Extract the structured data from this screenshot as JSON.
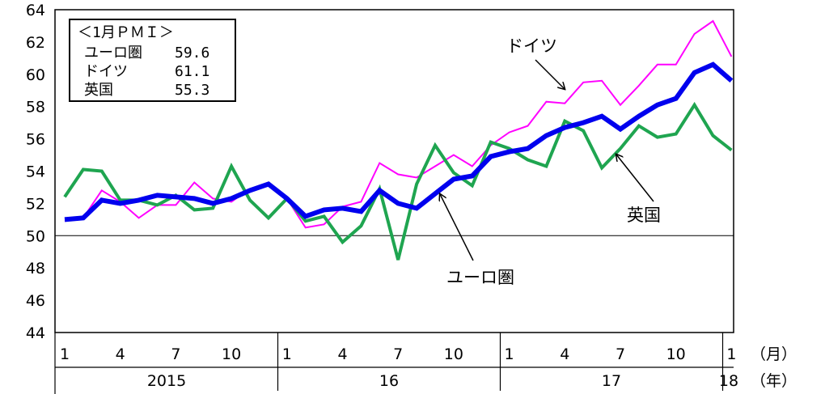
{
  "chart_data": {
    "type": "line",
    "title": "",
    "xlabel": "",
    "ylabel": "",
    "ylim": [
      44,
      64
    ],
    "y_ticks": [
      44,
      46,
      48,
      50,
      52,
      54,
      56,
      58,
      60,
      62,
      64
    ],
    "reference_line": 50,
    "grid": false,
    "x_month_ticks": [
      "1",
      "4",
      "7",
      "10",
      "1",
      "4",
      "7",
      "10",
      "1",
      "4",
      "7",
      "10",
      "1"
    ],
    "x_years": [
      "2015",
      "16",
      "17",
      "18"
    ],
    "month_unit": "（月）",
    "year_unit": "（年）",
    "x": [
      "2015-01",
      "2015-02",
      "2015-03",
      "2015-04",
      "2015-05",
      "2015-06",
      "2015-07",
      "2015-08",
      "2015-09",
      "2015-10",
      "2015-11",
      "2015-12",
      "2016-01",
      "2016-02",
      "2016-03",
      "2016-04",
      "2016-05",
      "2016-06",
      "2016-07",
      "2016-08",
      "2016-09",
      "2016-10",
      "2016-11",
      "2016-12",
      "2017-01",
      "2017-02",
      "2017-03",
      "2017-04",
      "2017-05",
      "2017-06",
      "2017-07",
      "2017-08",
      "2017-09",
      "2017-10",
      "2017-11",
      "2017-12",
      "2018-01"
    ],
    "series": [
      {
        "name": "ドイツ",
        "color": "#ff00ff",
        "values": [
          50.9,
          51.1,
          52.8,
          52.1,
          51.1,
          51.9,
          51.9,
          53.3,
          52.3,
          52.1,
          52.9,
          53.2,
          52.3,
          50.5,
          50.7,
          51.8,
          52.1,
          54.5,
          53.8,
          53.6,
          54.3,
          55.0,
          54.3,
          55.6,
          56.4,
          56.8,
          58.3,
          58.2,
          59.5,
          59.6,
          58.1,
          59.3,
          60.6,
          60.6,
          62.5,
          63.3,
          61.1
        ]
      },
      {
        "name": "ユーロ圏",
        "color": "#0000ee",
        "values": [
          51.0,
          51.1,
          52.2,
          52.0,
          52.2,
          52.5,
          52.4,
          52.3,
          52.0,
          52.3,
          52.8,
          53.2,
          52.3,
          51.2,
          51.6,
          51.7,
          51.5,
          52.8,
          52.0,
          51.7,
          52.6,
          53.5,
          53.7,
          54.9,
          55.2,
          55.4,
          56.2,
          56.7,
          57.0,
          57.4,
          56.6,
          57.4,
          58.1,
          58.5,
          60.1,
          60.6,
          59.6
        ]
      },
      {
        "name": "英国",
        "color": "#1fa550",
        "values": [
          52.4,
          54.1,
          54.0,
          52.2,
          52.2,
          51.9,
          52.5,
          51.6,
          51.7,
          54.3,
          52.2,
          51.1,
          52.3,
          50.9,
          51.2,
          49.6,
          50.6,
          52.9,
          48.5,
          53.2,
          55.6,
          53.9,
          53.1,
          55.8,
          55.4,
          54.7,
          54.3,
          57.1,
          56.5,
          54.2,
          55.4,
          56.8,
          56.1,
          56.3,
          58.1,
          56.2,
          55.3
        ]
      }
    ],
    "annotations": [
      {
        "text": "ドイツ",
        "series": "ドイツ"
      },
      {
        "text": "英国",
        "series": "英国"
      },
      {
        "text": "ユーロ圏",
        "series": "ユーロ圏"
      }
    ],
    "info_box": {
      "title": "＜1月ＰＭＩ＞",
      "rows": [
        {
          "label": "ユーロ圏",
          "value": "59.6"
        },
        {
          "label": "ドイツ",
          "value": "61.1"
        },
        {
          "label": "英国",
          "value": "55.3"
        }
      ]
    }
  }
}
